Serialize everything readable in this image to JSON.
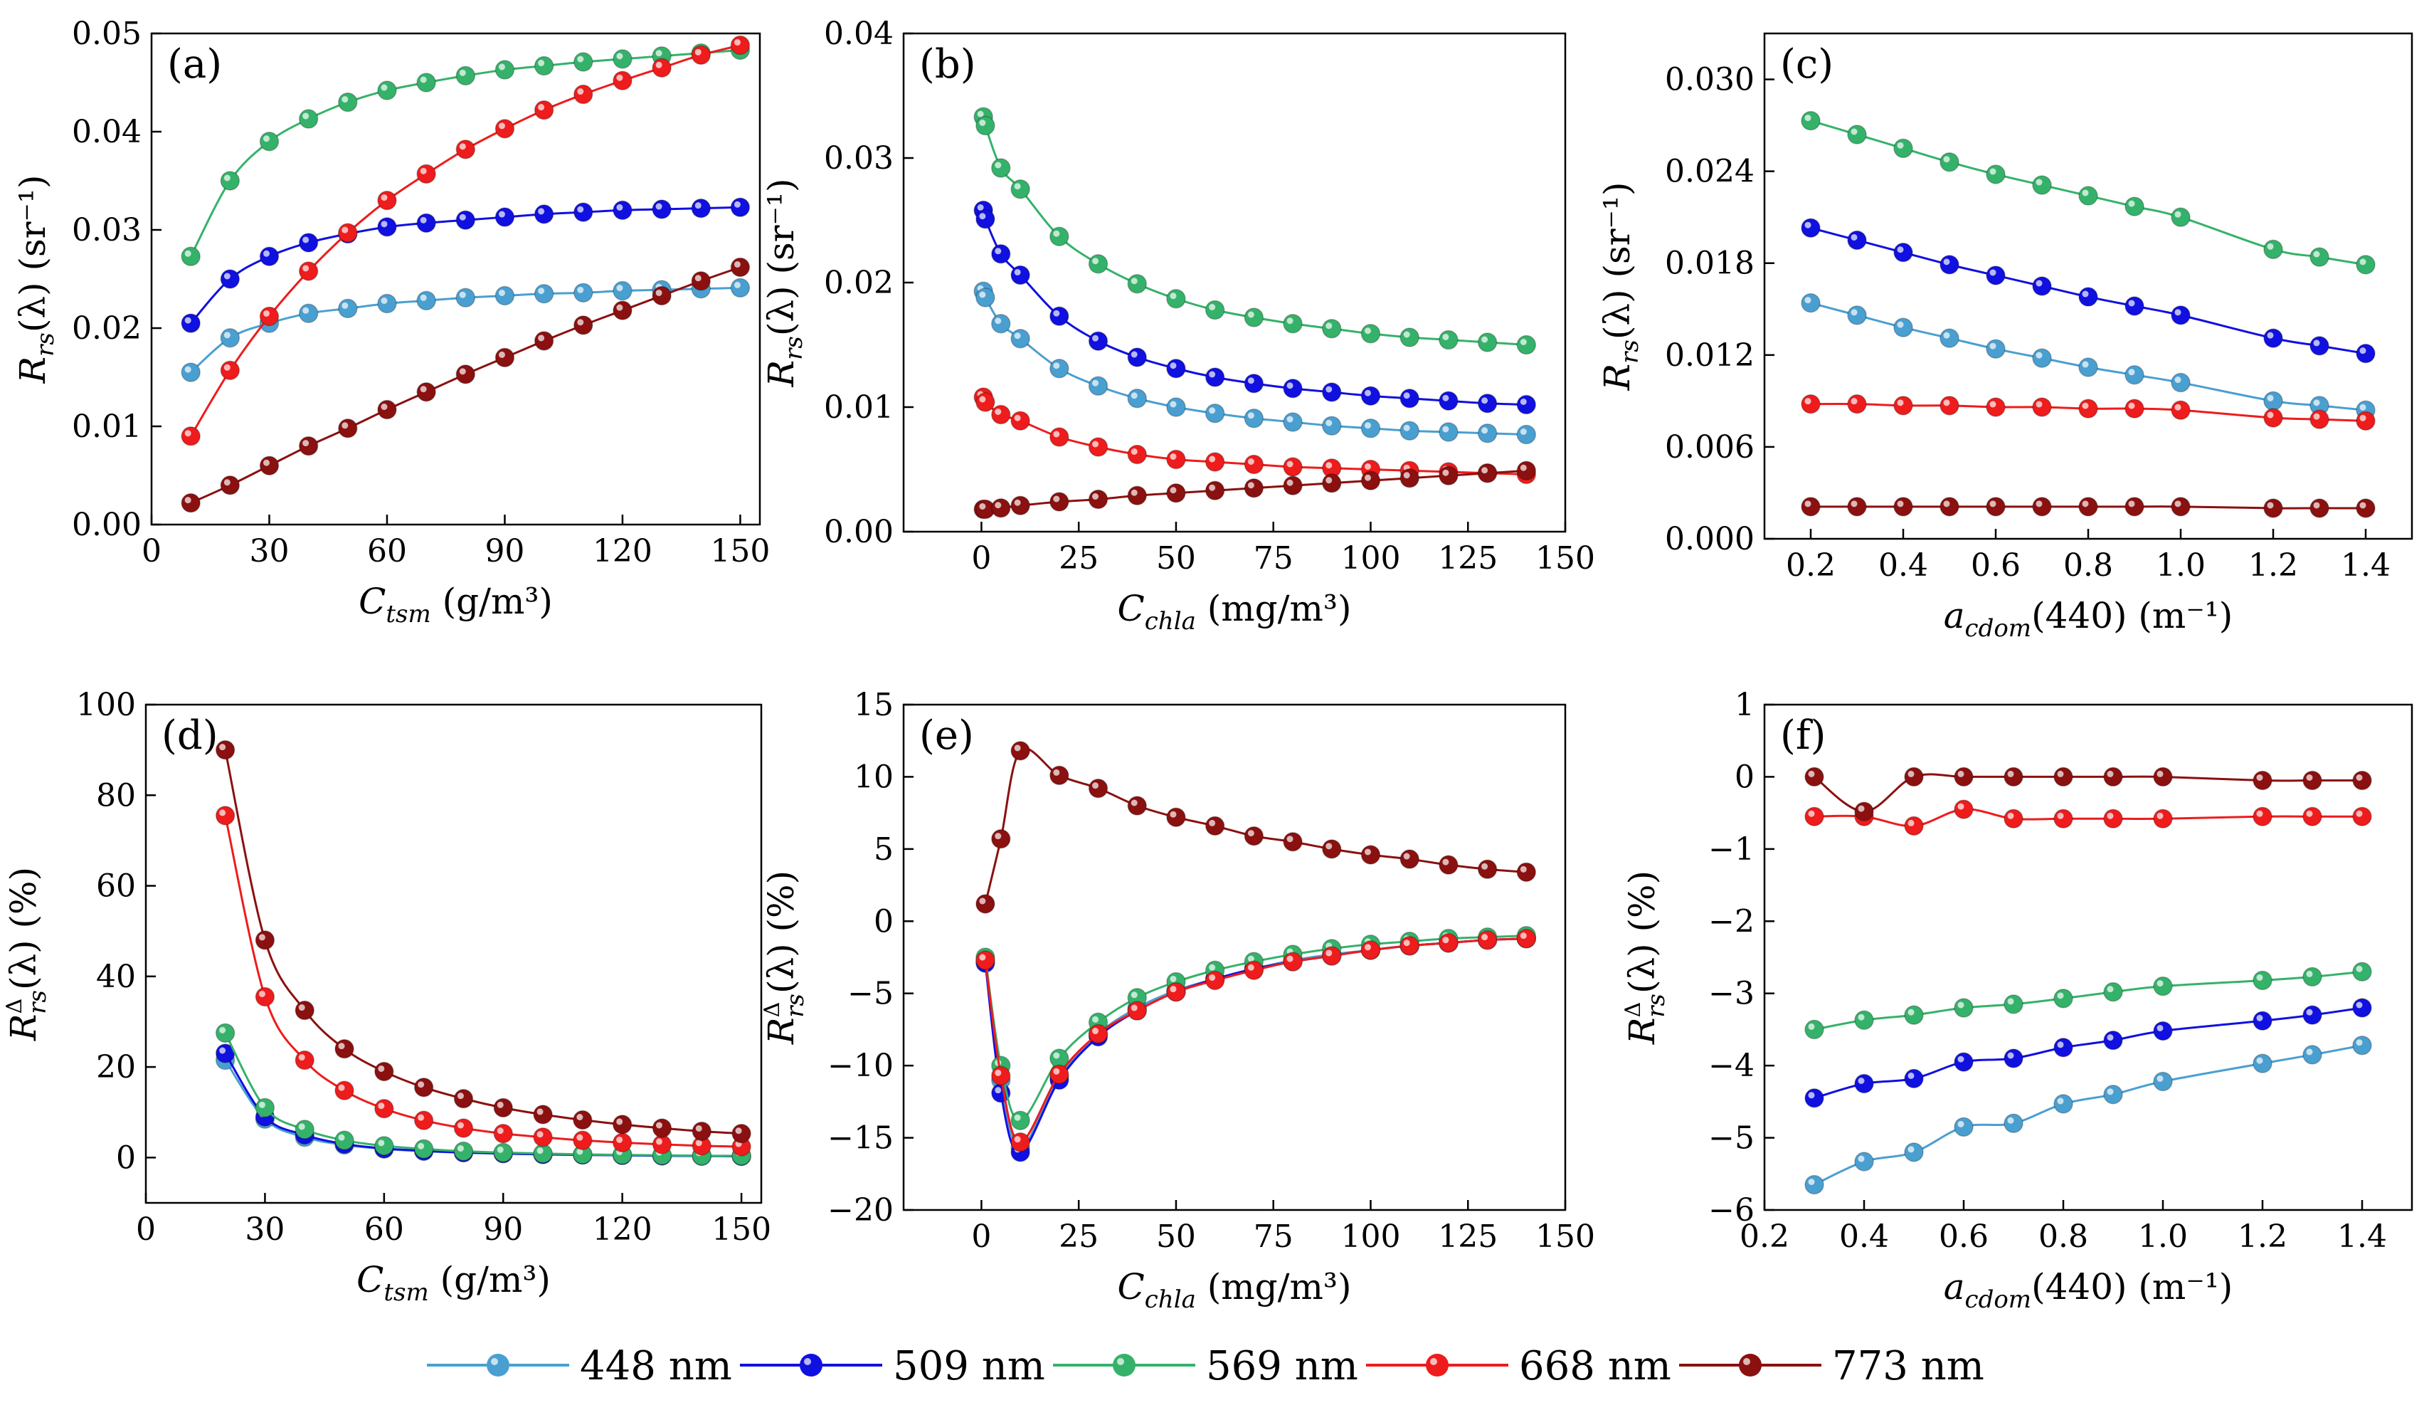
{
  "legend": [
    {
      "label": "448 nm",
      "color": "#4a9fd1"
    },
    {
      "label": "509 nm",
      "color": "#1010e0"
    },
    {
      "label": "569 nm",
      "color": "#35b26a"
    },
    {
      "label": "668 nm",
      "color": "#ee1c1c"
    },
    {
      "label": "773 nm",
      "color": "#8b1010"
    }
  ],
  "chart_data": [
    {
      "type": "line",
      "panel_label": "(a)",
      "xlabel": {
        "main": "C",
        "sub": "tsm",
        "unit": " (g/m³)"
      },
      "ylabel": {
        "main": "R",
        "sub": "rs",
        "rest": "(λ) (sr⁻¹)"
      },
      "xlim": [
        0,
        155
      ],
      "ylim": [
        0,
        0.05
      ],
      "xticks": [
        0,
        30,
        60,
        90,
        120,
        150
      ],
      "yticks": [
        0,
        0.01,
        0.02,
        0.03,
        0.04,
        0.05
      ],
      "ytick_labels": [
        "0.00",
        "0.01",
        "0.02",
        "0.03",
        "0.04",
        "0.05"
      ],
      "x": [
        10,
        20,
        30,
        40,
        50,
        60,
        70,
        80,
        90,
        100,
        110,
        120,
        130,
        140,
        150
      ],
      "series": [
        {
          "name": "448 nm",
          "values": [
            0.0155,
            0.019,
            0.0205,
            0.0215,
            0.022,
            0.0225,
            0.0228,
            0.0231,
            0.0233,
            0.0235,
            0.0236,
            0.0238,
            0.0239,
            0.024,
            0.0241
          ]
        },
        {
          "name": "509 nm",
          "values": [
            0.0205,
            0.025,
            0.0273,
            0.0287,
            0.0296,
            0.0303,
            0.0307,
            0.031,
            0.0313,
            0.0316,
            0.0318,
            0.032,
            0.0321,
            0.0322,
            0.0323
          ]
        },
        {
          "name": "569 nm",
          "values": [
            0.0273,
            0.035,
            0.039,
            0.0413,
            0.043,
            0.0442,
            0.045,
            0.0457,
            0.0463,
            0.0467,
            0.0471,
            0.0474,
            0.0477,
            0.048,
            0.0483
          ]
        },
        {
          "name": "668 nm",
          "values": [
            0.009,
            0.0157,
            0.0212,
            0.0258,
            0.0297,
            0.033,
            0.0357,
            0.0382,
            0.0403,
            0.0422,
            0.0438,
            0.0452,
            0.0465,
            0.0478,
            0.0488
          ]
        },
        {
          "name": "773 nm",
          "values": [
            0.0022,
            0.004,
            0.006,
            0.008,
            0.0098,
            0.0117,
            0.0135,
            0.0153,
            0.017,
            0.0187,
            0.0203,
            0.0218,
            0.0233,
            0.0248,
            0.0262
          ]
        }
      ]
    },
    {
      "type": "line",
      "panel_label": "(b)",
      "xlabel": {
        "main": "C",
        "sub": "chla",
        "unit": " (mg/m³)"
      },
      "ylabel": {
        "main": "R",
        "sub": "rs",
        "rest": "(λ) (sr⁻¹)"
      },
      "xlim": [
        -20,
        150
      ],
      "ylim": [
        0,
        0.04
      ],
      "xticks": [
        0,
        25,
        50,
        75,
        100,
        125,
        150
      ],
      "yticks": [
        0,
        0.01,
        0.02,
        0.03,
        0.04
      ],
      "ytick_labels": [
        "0.00",
        "0.01",
        "0.02",
        "0.03",
        "0.04"
      ],
      "x": [
        0.5,
        1,
        5,
        10,
        20,
        30,
        40,
        50,
        60,
        70,
        80,
        90,
        100,
        110,
        120,
        130,
        140
      ],
      "series": [
        {
          "name": "448 nm",
          "values": [
            0.0193,
            0.0188,
            0.0167,
            0.0155,
            0.0131,
            0.0117,
            0.0107,
            0.01,
            0.0095,
            0.0091,
            0.0088,
            0.0085,
            0.0083,
            0.0081,
            0.008,
            0.0079,
            0.0078
          ]
        },
        {
          "name": "509 nm",
          "values": [
            0.0258,
            0.0251,
            0.0223,
            0.0206,
            0.0173,
            0.0153,
            0.014,
            0.0131,
            0.0124,
            0.0119,
            0.0115,
            0.0112,
            0.0109,
            0.0107,
            0.0105,
            0.0103,
            0.0102
          ]
        },
        {
          "name": "569 nm",
          "values": [
            0.0333,
            0.0326,
            0.0292,
            0.0275,
            0.0237,
            0.0215,
            0.0199,
            0.0187,
            0.0178,
            0.0172,
            0.0167,
            0.0163,
            0.0159,
            0.0156,
            0.0154,
            0.0152,
            0.015
          ]
        },
        {
          "name": "668 nm",
          "values": [
            0.0108,
            0.0104,
            0.0094,
            0.0089,
            0.0076,
            0.0068,
            0.0062,
            0.0058,
            0.0056,
            0.0054,
            0.0052,
            0.0051,
            0.005,
            0.0049,
            0.0048,
            0.0047,
            0.0046
          ]
        },
        {
          "name": "773 nm",
          "values": [
            0.0018,
            0.0018,
            0.0019,
            0.0021,
            0.0024,
            0.0026,
            0.0029,
            0.0031,
            0.0033,
            0.0035,
            0.0037,
            0.0039,
            0.0041,
            0.0043,
            0.0045,
            0.0047,
            0.0049
          ]
        }
      ]
    },
    {
      "type": "line",
      "panel_label": "(c)",
      "xlabel": {
        "main": "a",
        "sub": "cdom",
        "unit": "(440) (m⁻¹)"
      },
      "ylabel": {
        "main": "R",
        "sub": "rs",
        "rest": "(λ) (sr⁻¹)"
      },
      "xlim": [
        0.1,
        1.5
      ],
      "ylim": [
        0,
        0.033
      ],
      "xticks": [
        0.2,
        0.4,
        0.6,
        0.8,
        1.0,
        1.2,
        1.4
      ],
      "xtick_labels": [
        "0.2",
        "0.4",
        "0.6",
        "0.8",
        "1.0",
        "1.2",
        "1.4"
      ],
      "yticks": [
        0,
        0.006,
        0.012,
        0.018,
        0.024,
        0.03
      ],
      "ytick_labels": [
        "0.000",
        "0.006",
        "0.012",
        "0.018",
        "0.024",
        "0.030"
      ],
      "x": [
        0.2,
        0.3,
        0.4,
        0.5,
        0.6,
        0.7,
        0.8,
        0.9,
        1.0,
        1.2,
        1.3,
        1.4
      ],
      "series": [
        {
          "name": "448 nm",
          "values": [
            0.0154,
            0.0146,
            0.0138,
            0.0131,
            0.0124,
            0.0118,
            0.0112,
            0.0107,
            0.0102,
            0.009,
            0.0087,
            0.0084
          ]
        },
        {
          "name": "509 nm",
          "values": [
            0.0203,
            0.0195,
            0.0187,
            0.0179,
            0.0172,
            0.0165,
            0.0158,
            0.0152,
            0.0146,
            0.0131,
            0.0126,
            0.0121
          ]
        },
        {
          "name": "569 nm",
          "values": [
            0.0273,
            0.0264,
            0.0255,
            0.0246,
            0.0238,
            0.0231,
            0.0224,
            0.0217,
            0.021,
            0.0189,
            0.0184,
            0.0179
          ]
        },
        {
          "name": "668 nm",
          "values": [
            0.0088,
            0.0088,
            0.0087,
            0.0087,
            0.0086,
            0.0086,
            0.0085,
            0.0085,
            0.0084,
            0.0079,
            0.0078,
            0.0077
          ]
        },
        {
          "name": "773 nm",
          "values": [
            0.0021,
            0.0021,
            0.0021,
            0.0021,
            0.0021,
            0.0021,
            0.0021,
            0.0021,
            0.0021,
            0.002,
            0.002,
            0.002
          ]
        }
      ]
    },
    {
      "type": "line",
      "panel_label": "(d)",
      "xlabel": {
        "main": "C",
        "sub": "tsm",
        "unit": " (g/m³)"
      },
      "ylabel": {
        "main": "R",
        "sub": "rs",
        "supdelta": "Δ",
        "rest": "(λ) (%)"
      },
      "xlim": [
        0,
        155
      ],
      "ylim": [
        -10,
        100
      ],
      "xticks": [
        0,
        30,
        60,
        90,
        120,
        150
      ],
      "yticks": [
        0,
        20,
        40,
        60,
        80,
        100
      ],
      "x": [
        20,
        30,
        40,
        50,
        60,
        70,
        80,
        90,
        100,
        110,
        120,
        130,
        140,
        150
      ],
      "series": [
        {
          "name": "448 nm",
          "values": [
            21.5,
            8.5,
            4.5,
            2.8,
            1.9,
            1.4,
            1.1,
            0.9,
            0.7,
            0.6,
            0.5,
            0.4,
            0.3,
            0.3
          ]
        },
        {
          "name": "509 nm",
          "values": [
            23,
            9,
            5,
            3,
            2,
            1.5,
            1.1,
            0.9,
            0.7,
            0.6,
            0.5,
            0.4,
            0.4,
            0.3
          ]
        },
        {
          "name": "569 nm",
          "values": [
            27.5,
            11,
            6.2,
            3.8,
            2.6,
            1.9,
            1.4,
            1.1,
            0.9,
            0.7,
            0.6,
            0.5,
            0.4,
            0.4
          ]
        },
        {
          "name": "668 nm",
          "values": [
            75.5,
            35.5,
            21.5,
            14.8,
            10.8,
            8.2,
            6.5,
            5.3,
            4.5,
            3.8,
            3.3,
            2.9,
            2.6,
            2.4
          ]
        },
        {
          "name": "773 nm",
          "values": [
            90,
            48,
            32.5,
            24,
            19,
            15.5,
            13,
            11,
            9.5,
            8.3,
            7.3,
            6.5,
            5.8,
            5.3
          ]
        }
      ]
    },
    {
      "type": "line",
      "panel_label": "(e)",
      "xlabel": {
        "main": "C",
        "sub": "chla",
        "unit": " (mg/m³)"
      },
      "ylabel": {
        "main": "R",
        "sub": "rs",
        "supdelta": "Δ",
        "rest": "(λ) (%)"
      },
      "xlim": [
        -20,
        150
      ],
      "ylim": [
        -20,
        15
      ],
      "xticks": [
        0,
        25,
        50,
        75,
        100,
        125,
        150
      ],
      "yticks": [
        -20,
        -15,
        -10,
        -5,
        0,
        5,
        10,
        15
      ],
      "x": [
        1,
        5,
        10,
        20,
        30,
        40,
        50,
        60,
        70,
        80,
        90,
        100,
        110,
        120,
        130,
        140
      ],
      "series": [
        {
          "name": "448 nm",
          "values": [
            -2.8,
            -11,
            -15.7,
            -10.8,
            -7.8,
            -6,
            -4.8,
            -4,
            -3.3,
            -2.7,
            -2.3,
            -2,
            -1.7,
            -1.5,
            -1.3,
            -1.2
          ]
        },
        {
          "name": "509 nm",
          "values": [
            -2.9,
            -11.9,
            -16,
            -11,
            -8,
            -6.2,
            -4.9,
            -4,
            -3.3,
            -2.8,
            -2.4,
            -2,
            -1.7,
            -1.5,
            -1.3,
            -1.2
          ]
        },
        {
          "name": "569 nm",
          "values": [
            -2.5,
            -10,
            -13.8,
            -9.5,
            -7,
            -5.3,
            -4.2,
            -3.4,
            -2.8,
            -2.3,
            -1.9,
            -1.6,
            -1.4,
            -1.2,
            -1.1,
            -1.0
          ]
        },
        {
          "name": "668 nm",
          "values": [
            -2.7,
            -10.7,
            -15.3,
            -10.6,
            -7.8,
            -6.2,
            -4.9,
            -4.1,
            -3.4,
            -2.8,
            -2.4,
            -2,
            -1.7,
            -1.5,
            -1.3,
            -1.2
          ]
        },
        {
          "name": "773 nm",
          "values": [
            1.2,
            5.7,
            11.8,
            10.1,
            9.2,
            8.0,
            7.2,
            6.6,
            5.9,
            5.5,
            5.0,
            4.6,
            4.3,
            3.9,
            3.6,
            3.4
          ]
        }
      ]
    },
    {
      "type": "line",
      "panel_label": "(f)",
      "xlabel": {
        "main": "a",
        "sub": "cdom",
        "unit": "(440) (m⁻¹)"
      },
      "ylabel": {
        "main": "R",
        "sub": "rs",
        "supdelta": "Δ",
        "rest": "(λ) (%)"
      },
      "xlim": [
        0.2,
        1.5
      ],
      "ylim": [
        -6,
        1
      ],
      "xticks": [
        0.2,
        0.4,
        0.6,
        0.8,
        1.0,
        1.2,
        1.4
      ],
      "xtick_labels": [
        "0.2",
        "0.4",
        "0.6",
        "0.8",
        "1.0",
        "1.2",
        "1.4"
      ],
      "yticks": [
        -6,
        -5,
        -4,
        -3,
        -2,
        -1,
        0,
        1
      ],
      "ytick_labels": [
        "−6",
        "−5",
        "−4",
        "−3",
        "−2",
        "−1",
        "0",
        "1"
      ],
      "x": [
        0.3,
        0.4,
        0.5,
        0.6,
        0.7,
        0.8,
        0.9,
        1.0,
        1.2,
        1.3,
        1.4
      ],
      "series": [
        {
          "name": "448 nm",
          "values": [
            -5.65,
            -5.33,
            -5.2,
            -4.85,
            -4.8,
            -4.53,
            -4.4,
            -4.22,
            -3.97,
            -3.85,
            -3.72
          ]
        },
        {
          "name": "509 nm",
          "values": [
            -4.45,
            -4.25,
            -4.18,
            -3.95,
            -3.9,
            -3.75,
            -3.65,
            -3.52,
            -3.38,
            -3.3,
            -3.2
          ]
        },
        {
          "name": "569 nm",
          "values": [
            -3.5,
            -3.37,
            -3.3,
            -3.2,
            -3.15,
            -3.07,
            -2.98,
            -2.9,
            -2.82,
            -2.77,
            -2.7
          ]
        },
        {
          "name": "668 nm",
          "values": [
            -0.55,
            -0.55,
            -0.68,
            -0.45,
            -0.58,
            -0.58,
            -0.58,
            -0.58,
            -0.55,
            -0.55,
            -0.55
          ]
        },
        {
          "name": "773 nm",
          "values": [
            0,
            -0.48,
            0,
            0,
            0,
            0,
            0,
            0,
            -0.05,
            -0.05,
            -0.05
          ]
        }
      ]
    }
  ]
}
